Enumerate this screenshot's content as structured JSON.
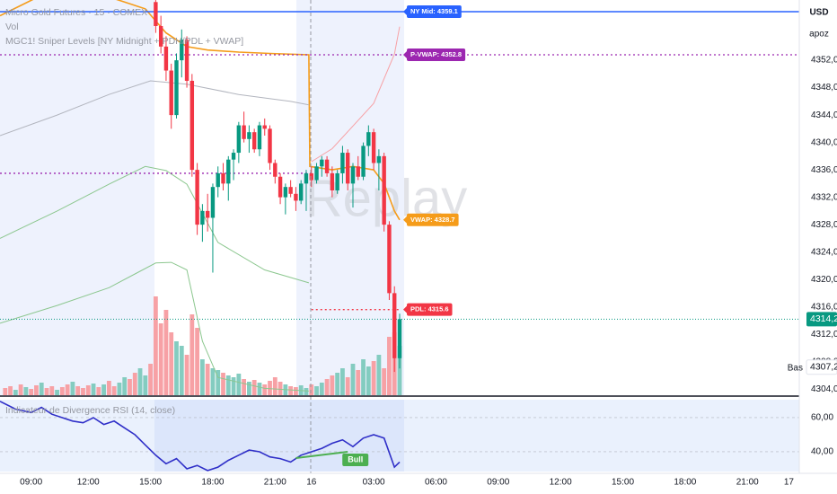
{
  "chart_data": [
    {
      "type": "candlestick",
      "title": "Micro Gold Futures · 15 · COMEX",
      "indicators": [
        "Vol",
        "MGC1! Sniper Levels [NY Midnight + PDH/PDL + VWAP]"
      ],
      "currency": "USD",
      "user": "apoz",
      "watermark": "Replay",
      "up_color": "#089981",
      "down_color": "#f23645",
      "x": [
        24,
        25,
        26,
        27,
        28,
        29,
        30,
        31,
        32,
        33,
        34,
        35,
        36,
        37,
        38,
        39,
        40,
        41,
        42,
        43,
        44,
        45,
        46,
        47,
        48,
        49,
        50,
        51,
        52,
        53,
        54,
        55,
        56,
        57,
        58,
        59,
        60,
        61,
        62,
        63,
        64,
        65,
        66,
        67,
        68,
        69,
        70,
        71
      ],
      "open": [
        4360.5,
        4357.0,
        4354.0,
        4350.5,
        4344.0,
        4352.0,
        4355.0,
        4349.0,
        4336.0,
        4328.0,
        4330.0,
        4329.0,
        4333.5,
        4335.5,
        4334.0,
        4337.5,
        4338.5,
        4342.5,
        4340.5,
        4341.5,
        4339.0,
        4342.5,
        4342.0,
        4337.0,
        4335.0,
        4332.0,
        4333.5,
        4332.5,
        4331.5,
        4334.0,
        4335.5,
        4334.5,
        4336.5,
        4337.5,
        4335.5,
        4333.0,
        4335.5,
        4338.5,
        4334.0,
        4336.5,
        4335.0,
        4339.5,
        4341.5,
        4337.0,
        4338.0,
        4328.0,
        4318.0,
        4308.5
      ],
      "high": [
        4361.5,
        4358.5,
        4355.5,
        4351.5,
        4353.0,
        4356.5,
        4355.5,
        4350.0,
        4337.0,
        4331.0,
        4332.5,
        4334.0,
        4336.5,
        4337.0,
        4338.0,
        4339.0,
        4343.0,
        4344.5,
        4342.5,
        4342.0,
        4343.0,
        4343.5,
        4342.5,
        4337.5,
        4335.5,
        4334.0,
        4334.5,
        4333.5,
        4334.5,
        4336.0,
        4336.5,
        4337.0,
        4338.0,
        4338.0,
        4336.5,
        4336.0,
        4339.5,
        4339.0,
        4337.0,
        4338.0,
        4340.0,
        4342.5,
        4342.0,
        4339.0,
        4338.5,
        4328.5,
        4319.0,
        4315.0
      ],
      "low": [
        4356.0,
        4353.0,
        4349.0,
        4342.0,
        4343.5,
        4349.5,
        4348.0,
        4335.0,
        4326.5,
        4325.5,
        4327.0,
        4321.0,
        4332.0,
        4333.0,
        4331.5,
        4334.5,
        4337.0,
        4340.0,
        4338.5,
        4338.5,
        4338.0,
        4341.0,
        4336.0,
        4334.0,
        4331.0,
        4329.5,
        4332.0,
        4330.0,
        4331.0,
        4330.0,
        4333.5,
        4334.0,
        4335.0,
        4335.0,
        4332.0,
        4332.5,
        4334.0,
        4333.0,
        4330.5,
        4334.5,
        4334.5,
        4338.0,
        4336.0,
        4333.0,
        4327.0,
        4317.0,
        4306.5,
        4307.0
      ],
      "close": [
        4357.0,
        4354.0,
        4350.5,
        4344.0,
        4352.0,
        4355.0,
        4349.0,
        4336.0,
        4328.0,
        4330.0,
        4329.0,
        4333.5,
        4335.5,
        4334.0,
        4337.5,
        4338.5,
        4342.5,
        4340.5,
        4341.5,
        4339.0,
        4342.5,
        4342.0,
        4337.0,
        4335.0,
        4332.0,
        4333.5,
        4332.5,
        4331.5,
        4334.0,
        4335.5,
        4334.5,
        4336.5,
        4337.5,
        4335.5,
        4333.0,
        4335.5,
        4338.5,
        4334.0,
        4336.5,
        4335.0,
        4339.5,
        4341.5,
        4337.0,
        4338.0,
        4328.0,
        4318.0,
        4308.5,
        4314.2
      ],
      "volume": {
        "x": [
          -5,
          -4,
          -3,
          -2,
          -1,
          0,
          1,
          2,
          3,
          4,
          5,
          6,
          7,
          8,
          9,
          10,
          11,
          12,
          13,
          14,
          15,
          16,
          17,
          18,
          19,
          20,
          21,
          22,
          23,
          24,
          25,
          26,
          27,
          28,
          29,
          30,
          31,
          32,
          33,
          34,
          35,
          36,
          37,
          38,
          39,
          40,
          41,
          42,
          43,
          44,
          45,
          46,
          47,
          48,
          49,
          50,
          51,
          52,
          53,
          54,
          55,
          56,
          57,
          58,
          59,
          60,
          61,
          62,
          63,
          64,
          65,
          66,
          67,
          68,
          69,
          70,
          71
        ],
        "values": [
          8,
          10,
          6,
          12,
          9,
          7,
          11,
          14,
          8,
          10,
          6,
          9,
          12,
          15,
          10,
          8,
          11,
          13,
          9,
          12,
          16,
          10,
          14,
          20,
          18,
          25,
          30,
          22,
          35,
          110,
          80,
          95,
          70,
          60,
          55,
          45,
          90,
          75,
          40,
          35,
          30,
          28,
          25,
          22,
          20,
          24,
          18,
          15,
          17,
          14,
          12,
          16,
          20,
          15,
          12,
          10,
          9,
          11,
          8,
          12,
          10,
          14,
          18,
          22,
          25,
          30,
          20,
          35,
          28,
          40,
          32,
          38,
          45,
          30,
          65,
          70,
          55
        ],
        "colors": [
          "#f7a1a5",
          "#f7a1a5",
          "#84ccc0",
          "#f7a1a5",
          "#84ccc0",
          "#f7a1a5",
          "#f7a1a5",
          "#84ccc0",
          "#f7a1a5",
          "#f7a1a5",
          "#84ccc0",
          "#f7a1a5",
          "#f7a1a5",
          "#84ccc0",
          "#f7a1a5",
          "#f7a1a5",
          "#f7a1a5",
          "#84ccc0",
          "#f7a1a5",
          "#84ccc0",
          "#f7a1a5",
          "#f7a1a5",
          "#84ccc0",
          "#84ccc0",
          "#f7a1a5",
          "#f7a1a5",
          "#84ccc0",
          "#84ccc0",
          "#f7a1a5",
          "#f7a1a5",
          "#f7a1a5",
          "#f7a1a5",
          "#f7a1a5",
          "#84ccc0",
          "#84ccc0",
          "#f7a1a5",
          "#f7a1a5",
          "#f7a1a5",
          "#84ccc0",
          "#f7a1a5",
          "#84ccc0",
          "#84ccc0",
          "#f7a1a5",
          "#84ccc0",
          "#84ccc0",
          "#84ccc0",
          "#f7a1a5",
          "#84ccc0",
          "#f7a1a5",
          "#84ccc0",
          "#f7a1a5",
          "#f7a1a5",
          "#f7a1a5",
          "#f7a1a5",
          "#84ccc0",
          "#f7a1a5",
          "#f7a1a5",
          "#84ccc0",
          "#84ccc0",
          "#f7a1a5",
          "#84ccc0",
          "#84ccc0",
          "#f7a1a5",
          "#f7a1a5",
          "#84ccc0",
          "#84ccc0",
          "#f7a1a5",
          "#84ccc0",
          "#f7a1a5",
          "#84ccc0",
          "#84ccc0",
          "#f7a1a5",
          "#84ccc0",
          "#f7a1a5",
          "#f7a1a5",
          "#f7a1a5",
          "#84ccc0"
        ]
      },
      "lines": [
        {
          "color": "#f59c1a",
          "x": [
            -6,
            -2,
            2,
            6,
            10,
            14,
            18,
            22,
            26,
            30,
            34,
            40,
            46,
            53.5,
            53.7,
            58,
            62,
            66,
            68,
            70,
            71
          ],
          "values": [
            4358.5,
            4360,
            4361.5,
            4362,
            4362,
            4361.5,
            4360.5,
            4359.5,
            4356,
            4354,
            4353.5,
            4353.2,
            4353,
            4352.8,
            4336.5,
            4336,
            4336.5,
            4336,
            4334,
            4330,
            4328.7
          ]
        },
        {
          "color": "#b2b5be",
          "x": [
            -6,
            5,
            15,
            23,
            30,
            40,
            50,
            53.5
          ],
          "values": [
            4341,
            4344,
            4347,
            4349,
            4348.5,
            4347,
            4346,
            4345.5
          ]
        },
        {
          "color": "#8cc78f",
          "x": [
            -6,
            5,
            15,
            22,
            26,
            30,
            36,
            45,
            53.5
          ],
          "values": [
            4326,
            4330,
            4333.9,
            4336.5,
            4335.9,
            4333.9,
            4325.4,
            4321.4,
            4319.5
          ]
        },
        {
          "color": "#8cc78f",
          "x": [
            -6,
            5,
            15,
            20,
            24,
            27,
            30,
            33,
            36,
            45,
            53.5
          ],
          "values": [
            4313.6,
            4316.2,
            4318.8,
            4320.8,
            4322.4,
            4322.5,
            4321.4,
            4311,
            4305.7,
            4304.1,
            4303.7
          ]
        },
        {
          "color": "#f7a1a5",
          "x": [
            54,
            58,
            62,
            66,
            70,
            71
          ],
          "values": [
            4337.2,
            4339.1,
            4342.4,
            4345.7,
            4352.9,
            4356.9
          ]
        }
      ],
      "levels": [
        {
          "value": 4359.1,
          "color": "#2962ff",
          "style": "solid"
        },
        {
          "value": 4352.8,
          "color": "#9c27b0",
          "style": "dotted"
        },
        {
          "value": 4335.5,
          "color": "#9c27b0",
          "style": "dotted",
          "to": 54
        },
        {
          "value": 4315.6,
          "color": "#f23645",
          "style": "dotted",
          "from": 54,
          "to": 71
        }
      ],
      "tags": [
        {
          "text": "NY Mid: 4359.1",
          "value": 4359.1,
          "color": "#2962ff"
        },
        {
          "text": "P-VWAP: 4352.8",
          "value": 4352.8,
          "color": "#9c27b0"
        },
        {
          "text": "VWAP: 4328.7",
          "value": 4328.7,
          "color": "#f59c1a"
        },
        {
          "text": "PDL: 4315.6",
          "value": 4315.6,
          "color": "#f23645"
        }
      ],
      "last_price": {
        "value": 4314.2,
        "label": "4314,2",
        "color": "#089981"
      },
      "bid": {
        "name": "Bas",
        "value": 4307.2,
        "label": "4307,2"
      },
      "xlim": [
        -6,
        148
      ],
      "ylim": [
        4303.1,
        4360.8
      ],
      "xticks": [
        {
          "value": 0,
          "label": "09:00"
        },
        {
          "value": 11,
          "label": "12:00"
        },
        {
          "value": 23,
          "label": "15:00"
        },
        {
          "value": 35,
          "label": "18:00"
        },
        {
          "value": 47,
          "label": "21:00"
        },
        {
          "value": 54,
          "label": "16"
        },
        {
          "value": 66,
          "label": "03:00"
        },
        {
          "value": 78,
          "label": "06:00"
        },
        {
          "value": 90,
          "label": "09:00"
        },
        {
          "value": 102,
          "label": "12:00"
        },
        {
          "value": 114,
          "label": "15:00"
        },
        {
          "value": 126,
          "label": "18:00"
        },
        {
          "value": 138,
          "label": "21:00"
        },
        {
          "value": 146,
          "label": "17"
        }
      ],
      "yticks": [
        {
          "value": 4304,
          "label": "4304,0"
        },
        {
          "value": 4308,
          "label": "4308,0"
        },
        {
          "value": 4312,
          "label": "4312,0"
        },
        {
          "value": 4316,
          "label": "4316,0"
        },
        {
          "value": 4320,
          "label": "4320,0"
        },
        {
          "value": 4324,
          "label": "4324,0"
        },
        {
          "value": 4328,
          "label": "4328,0"
        },
        {
          "value": 4332,
          "label": "4332,0"
        },
        {
          "value": 4336,
          "label": "4336,0"
        },
        {
          "value": 4340,
          "label": "4340,0"
        },
        {
          "value": 4344,
          "label": "4344,0"
        },
        {
          "value": 4348,
          "label": "4348,0"
        },
        {
          "value": 4352,
          "label": "4352,0"
        }
      ]
    },
    {
      "type": "line",
      "title": "Indicateur de Divergence RSI (14, close)",
      "color": "#2f2fc8",
      "x": [
        -6,
        -3,
        0,
        2,
        4,
        6,
        8,
        10,
        12,
        14,
        16,
        18,
        20,
        22,
        24,
        26,
        28,
        30,
        32,
        34,
        36,
        38,
        40,
        42,
        44,
        46,
        48,
        50,
        52,
        54,
        56,
        58,
        60,
        62,
        64,
        66,
        68,
        70,
        71
      ],
      "values": [
        69.5,
        65,
        63,
        66,
        62,
        60,
        58,
        57,
        60,
        56,
        58,
        54,
        50,
        44,
        38,
        33,
        36,
        30,
        32,
        29,
        31,
        35,
        38,
        41,
        40,
        37,
        36,
        34,
        38,
        40,
        42,
        45,
        47,
        43,
        48,
        50,
        48,
        31,
        34
      ],
      "divergence": {
        "x": [
          51,
          61
        ],
        "values": [
          36.3,
          40
        ],
        "label": "Bull",
        "color": "#4caf50"
      },
      "ylim": [
        28.4,
        70.5
      ],
      "yticks": [
        {
          "value": 40,
          "label": "40,00"
        },
        {
          "value": 60,
          "label": "60,00"
        }
      ]
    }
  ]
}
